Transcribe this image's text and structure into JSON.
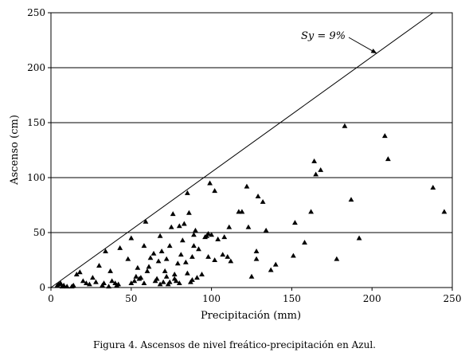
{
  "caption": "Figura 4. Ascensos de nivel freático-precipitación en Azul.",
  "chart_data": {
    "type": "scatter",
    "title": "",
    "xlabel": "Precipitación (mm)",
    "ylabel": "Ascenso (cm)",
    "xlim": [
      0,
      250
    ],
    "ylim": [
      0,
      250
    ],
    "xticks": [
      0,
      50,
      100,
      150,
      200,
      250
    ],
    "yticks": [
      0,
      50,
      100,
      150,
      200,
      250
    ],
    "grid": "horizontal",
    "marker": "triangle",
    "reference_line": {
      "label": "Sy = 9%",
      "from": [
        0,
        0
      ],
      "to": [
        238,
        250
      ]
    },
    "annotation": {
      "text": "Sy = 9%",
      "arrow_to": [
        203,
        213
      ]
    },
    "points": [
      [
        4,
        2
      ],
      [
        5,
        3
      ],
      [
        6,
        4
      ],
      [
        7,
        1
      ],
      [
        8,
        2
      ],
      [
        10,
        1
      ],
      [
        13,
        1
      ],
      [
        14,
        2
      ],
      [
        16,
        12
      ],
      [
        18,
        14
      ],
      [
        20,
        6
      ],
      [
        22,
        4
      ],
      [
        24,
        3
      ],
      [
        26,
        9
      ],
      [
        28,
        5
      ],
      [
        30,
        20
      ],
      [
        32,
        2
      ],
      [
        33,
        4
      ],
      [
        34,
        33
      ],
      [
        36,
        1
      ],
      [
        37,
        15
      ],
      [
        38,
        6
      ],
      [
        40,
        4
      ],
      [
        41,
        2
      ],
      [
        42,
        3
      ],
      [
        43,
        36
      ],
      [
        48,
        26
      ],
      [
        50,
        4
      ],
      [
        50,
        45
      ],
      [
        52,
        6
      ],
      [
        53,
        10
      ],
      [
        54,
        18
      ],
      [
        55,
        8
      ],
      [
        56,
        9
      ],
      [
        58,
        4
      ],
      [
        58,
        38
      ],
      [
        59,
        60
      ],
      [
        60,
        15
      ],
      [
        61,
        19
      ],
      [
        62,
        27
      ],
      [
        64,
        31
      ],
      [
        65,
        6
      ],
      [
        66,
        8
      ],
      [
        67,
        24
      ],
      [
        68,
        47
      ],
      [
        68,
        3
      ],
      [
        69,
        33
      ],
      [
        70,
        5
      ],
      [
        71,
        15
      ],
      [
        72,
        10
      ],
      [
        72,
        26
      ],
      [
        73,
        3
      ],
      [
        74,
        5
      ],
      [
        74,
        38
      ],
      [
        75,
        55
      ],
      [
        76,
        67
      ],
      [
        77,
        12
      ],
      [
        77,
        8
      ],
      [
        78,
        6
      ],
      [
        79,
        22
      ],
      [
        80,
        4
      ],
      [
        80,
        56
      ],
      [
        81,
        30
      ],
      [
        82,
        43
      ],
      [
        83,
        58
      ],
      [
        84,
        23
      ],
      [
        85,
        13
      ],
      [
        85,
        86
      ],
      [
        86,
        68
      ],
      [
        87,
        5
      ],
      [
        88,
        28
      ],
      [
        88,
        7
      ],
      [
        89,
        48
      ],
      [
        89,
        38
      ],
      [
        90,
        52
      ],
      [
        91,
        9
      ],
      [
        92,
        35
      ],
      [
        94,
        12
      ],
      [
        96,
        46
      ],
      [
        97,
        47
      ],
      [
        98,
        49
      ],
      [
        98,
        28
      ],
      [
        99,
        95
      ],
      [
        100,
        48
      ],
      [
        102,
        88
      ],
      [
        102,
        25
      ],
      [
        104,
        44
      ],
      [
        107,
        30
      ],
      [
        108,
        46
      ],
      [
        110,
        28
      ],
      [
        111,
        55
      ],
      [
        112,
        24
      ],
      [
        117,
        69
      ],
      [
        119,
        69
      ],
      [
        122,
        92
      ],
      [
        123,
        55
      ],
      [
        125,
        10
      ],
      [
        128,
        33
      ],
      [
        128,
        26
      ],
      [
        129,
        83
      ],
      [
        132,
        78
      ],
      [
        134,
        52
      ],
      [
        137,
        16
      ],
      [
        140,
        21
      ],
      [
        151,
        29
      ],
      [
        152,
        59
      ],
      [
        158,
        41
      ],
      [
        162,
        69
      ],
      [
        164,
        115
      ],
      [
        165,
        103
      ],
      [
        168,
        107
      ],
      [
        178,
        26
      ],
      [
        183,
        147
      ],
      [
        187,
        80
      ],
      [
        192,
        45
      ],
      [
        208,
        138
      ],
      [
        210,
        117
      ],
      [
        238,
        91
      ],
      [
        245,
        69
      ]
    ]
  }
}
